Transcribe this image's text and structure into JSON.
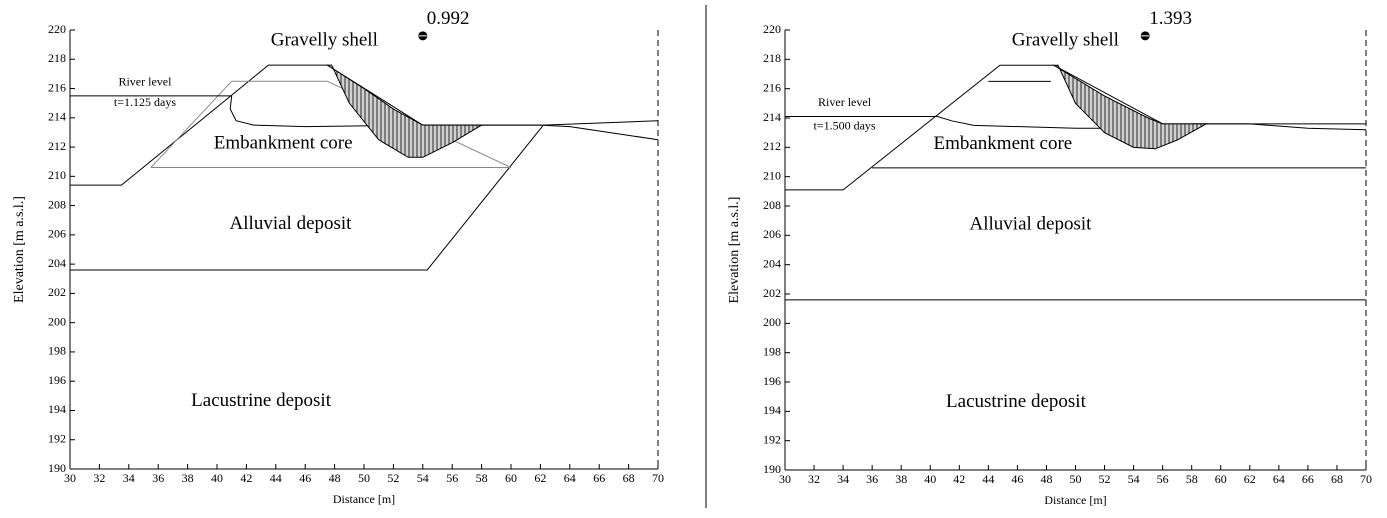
{
  "chart_data": [
    {
      "type": "line",
      "xlabel": "Distance [m]",
      "ylabel": "Elevation [m a.s.l.]",
      "xlim": [
        30,
        70
      ],
      "xticks": [
        30,
        32,
        34,
        36,
        38,
        40,
        42,
        44,
        46,
        48,
        50,
        52,
        54,
        56,
        58,
        60,
        62,
        64,
        66,
        68,
        70
      ],
      "ylim": [
        190,
        220
      ],
      "yticks": [
        190,
        192,
        194,
        196,
        198,
        200,
        202,
        204,
        206,
        208,
        210,
        212,
        214,
        216,
        218,
        220
      ],
      "annotations": [
        "Gravelly shell",
        "Embankment core",
        "Alluvial deposit",
        "Lacustrine deposit",
        "River level",
        "t=1.125 days"
      ],
      "slip_center": {
        "x": 54,
        "y": 219.6,
        "fs": 0.992
      },
      "series": [
        {
          "color": "#000000",
          "x": [
            30,
            33.5,
            43.5,
            47.5
          ],
          "values": [
            209.4,
            209.4,
            217.6,
            217.6
          ]
        },
        {
          "color": "#000000",
          "x": [
            47.5,
            54,
            62.2,
            70
          ],
          "values": [
            217.6,
            213.5,
            213.5,
            213.8
          ]
        },
        {
          "color": "#000000",
          "x": [
            62.2,
            54.3,
            30
          ],
          "values": [
            213.5,
            203.6,
            203.6
          ]
        },
        {
          "color": "#888888",
          "x": [
            35.5,
            41,
            47.5,
            60,
            35.5
          ],
          "values": [
            210.6,
            216.5,
            216.5,
            210.6,
            210.6
          ]
        },
        {
          "color": "#000000",
          "x": [
            30,
            41
          ],
          "values": [
            215.5,
            215.5
          ]
        },
        {
          "color": "#000000",
          "x": [
            41,
            40.9,
            41.3,
            42.5,
            46,
            54,
            62,
            64,
            66,
            68,
            70
          ],
          "values": [
            215.5,
            214.6,
            213.8,
            213.5,
            213.4,
            213.5,
            213.5,
            213.4,
            213.1,
            212.8,
            212.5
          ]
        },
        {
          "color": "#000000",
          "hatch": true,
          "x": [
            47.5,
            50,
            52,
            54,
            58,
            56,
            54,
            53,
            51,
            49,
            47.8
          ],
          "values": [
            217.6,
            216,
            214.6,
            213.5,
            213.5,
            212.3,
            211.3,
            211.3,
            212.5,
            215,
            217.6
          ]
        }
      ]
    },
    {
      "type": "line",
      "xlabel": "Distance [m]",
      "ylabel": "Elevation [m a.s.l.]",
      "xlim": [
        30,
        70
      ],
      "xticks": [
        30,
        32,
        34,
        36,
        38,
        40,
        42,
        44,
        46,
        48,
        50,
        52,
        54,
        56,
        58,
        60,
        62,
        64,
        66,
        68,
        70
      ],
      "ylim": [
        190,
        220
      ],
      "yticks": [
        190,
        192,
        194,
        196,
        198,
        200,
        202,
        204,
        206,
        208,
        210,
        212,
        214,
        216,
        218,
        220
      ],
      "annotations": [
        "Gravelly shell",
        "Embankment core",
        "Alluvial deposit",
        "Lacustrine deposit",
        "River level",
        "t=1.500 days"
      ],
      "slip_center": {
        "x": 54.8,
        "y": 219.6,
        "fs": 1.393
      },
      "series": [
        {
          "color": "#000000",
          "x": [
            30,
            34,
            44.8,
            48.5
          ],
          "values": [
            209.1,
            209.1,
            217.6,
            217.6
          ]
        },
        {
          "color": "#000000",
          "x": [
            48.5,
            56,
            70
          ],
          "values": [
            217.6,
            213.6,
            213.6
          ]
        },
        {
          "color": "#000000",
          "x": [
            36,
            70
          ],
          "values": [
            210.6,
            210.6
          ]
        },
        {
          "color": "#000000",
          "x": [
            44,
            48.3
          ],
          "values": [
            216.5,
            216.5
          ]
        },
        {
          "color": "#000000",
          "x": [
            30,
            70
          ],
          "values": [
            201.6,
            201.6
          ]
        },
        {
          "color": "#000000",
          "x": [
            30,
            40.5
          ],
          "values": [
            214.1,
            214.1
          ]
        },
        {
          "color": "#000000",
          "x": [
            40.5,
            41.5,
            43,
            50,
            56,
            58,
            62,
            66,
            70
          ],
          "values": [
            214.1,
            213.8,
            213.5,
            213.3,
            213.3,
            213.6,
            213.6,
            213.3,
            213.2
          ]
        },
        {
          "color": "#000000",
          "hatch": true,
          "x": [
            48.5,
            52,
            55,
            56,
            59,
            57,
            55.5,
            54,
            52,
            50,
            48.8
          ],
          "values": [
            217.6,
            215.5,
            214,
            213.6,
            213.6,
            212.5,
            211.9,
            212,
            213,
            215,
            217.6
          ]
        }
      ]
    }
  ]
}
